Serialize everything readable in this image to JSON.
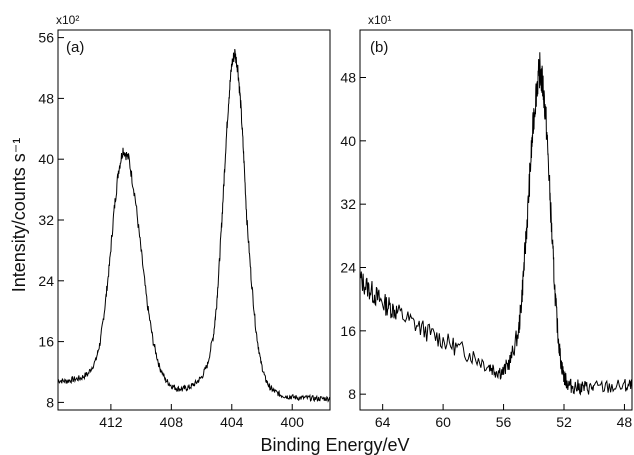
{
  "figure": {
    "x_axis_title": "Binding Energy/eV",
    "y_axis_title": "Intensity/counts s⁻¹"
  },
  "chart_data": [
    {
      "type": "line",
      "panel_label": "(a)",
      "multiplier_label": "x10²",
      "xlim": [
        415.5,
        397.5
      ],
      "ylim": [
        7,
        57
      ],
      "x_ticks": [
        412,
        408,
        404,
        400
      ],
      "y_ticks": [
        8,
        16,
        24,
        32,
        40,
        48,
        56
      ],
      "x_tick_labels": [
        "412",
        "408",
        "404",
        "400"
      ],
      "y_tick_labels": [
        "8",
        "16",
        "24",
        "32",
        "40",
        "48",
        "56"
      ],
      "series": [
        {
          "x": [
            415.5,
            415.0,
            414.5,
            414.0,
            413.5,
            413.0,
            412.7,
            412.4,
            412.1,
            411.8,
            411.5,
            411.2,
            410.8,
            410.4,
            410.0,
            409.6,
            409.2,
            408.8,
            408.4,
            408.0,
            407.6,
            407.2,
            406.8,
            406.4,
            406.0,
            405.6,
            405.2,
            405.0,
            404.8,
            404.6,
            404.4,
            404.2,
            404.0,
            403.8,
            403.6,
            403.4,
            403.2,
            403.0,
            402.7,
            402.4,
            402.1,
            401.8,
            401.5,
            401.2,
            400.8,
            400.4,
            400.0,
            399.5,
            399.0,
            398.5,
            398.0,
            397.5
          ],
          "y": [
            10.9,
            10.8,
            11.0,
            11.2,
            11.8,
            13.5,
            16.0,
            20.5,
            26.0,
            33.0,
            38.5,
            41.3,
            40.0,
            35.0,
            28.0,
            21.0,
            16.0,
            12.8,
            11.0,
            10.2,
            9.8,
            9.8,
            10.0,
            10.5,
            11.3,
            13.0,
            17.0,
            21.0,
            27.0,
            34.0,
            41.5,
            48.0,
            52.5,
            54.0,
            52.0,
            47.0,
            40.0,
            32.0,
            24.0,
            17.5,
            13.5,
            11.2,
            10.0,
            9.5,
            9.0,
            8.8,
            8.7,
            8.6,
            8.6,
            8.5,
            8.5,
            8.5
          ]
        }
      ]
    },
    {
      "type": "line",
      "panel_label": "(b)",
      "multiplier_label": "x10¹",
      "xlim": [
        65.5,
        47.5
      ],
      "ylim": [
        6,
        54
      ],
      "x_ticks": [
        64,
        60,
        56,
        52,
        48
      ],
      "y_ticks": [
        8,
        16,
        24,
        32,
        40,
        48
      ],
      "x_tick_labels": [
        "64",
        "60",
        "56",
        "52",
        "48"
      ],
      "y_tick_labels": [
        "8",
        "16",
        "24",
        "32",
        "40",
        "48"
      ],
      "series": [
        {
          "x": [
            65.5,
            65.0,
            64.5,
            64.0,
            63.5,
            63.0,
            62.0,
            61.0,
            60.0,
            59.0,
            58.0,
            57.0,
            56.5,
            56.0,
            55.5,
            55.0,
            54.8,
            54.6,
            54.4,
            54.2,
            54.0,
            53.8,
            53.6,
            53.4,
            53.2,
            53.0,
            52.8,
            52.6,
            52.4,
            52.2,
            52.0,
            51.8,
            51.5,
            51.0,
            50.5,
            50.0,
            49.0,
            48.0,
            47.5
          ],
          "y": [
            22.5,
            21.5,
            20.5,
            19.5,
            19.0,
            18.3,
            17.0,
            15.8,
            14.8,
            13.8,
            12.8,
            11.6,
            11.0,
            10.8,
            12.5,
            16.0,
            20.0,
            25.5,
            31.0,
            37.5,
            43.0,
            47.0,
            49.0,
            47.0,
            43.0,
            36.0,
            28.0,
            21.0,
            15.5,
            12.0,
            10.2,
            9.4,
            9.0,
            8.9,
            8.8,
            8.8,
            8.9,
            9.0,
            9.0
          ]
        }
      ]
    }
  ]
}
